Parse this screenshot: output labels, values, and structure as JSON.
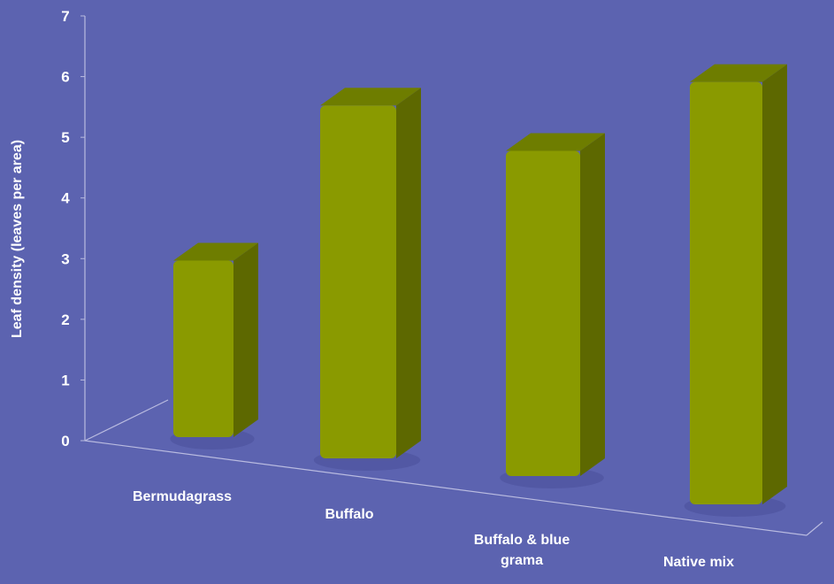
{
  "chart_data": {
    "type": "bar",
    "title": "",
    "xlabel": "",
    "ylabel": "Leaf  density (leaves per area)",
    "ylim": [
      0,
      7
    ],
    "yticks": [
      0,
      1,
      2,
      3,
      4,
      5,
      6,
      7
    ],
    "categories": [
      [
        "Bermudagrass"
      ],
      [
        "Buffalo"
      ],
      [
        "Buffalo & blue",
        "grama"
      ],
      [
        "Native mix"
      ]
    ],
    "values": [
      3.0,
      5.5,
      5.0,
      6.2
    ],
    "grid": false,
    "legend": "none",
    "bar_color": "#8a9a00",
    "background_color": "#5c63b0"
  }
}
